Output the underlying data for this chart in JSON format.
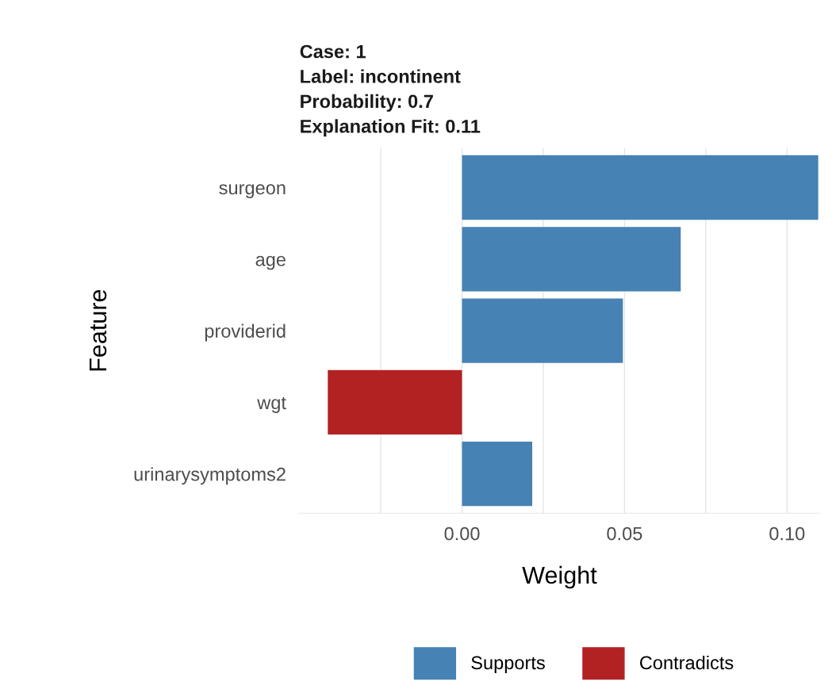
{
  "chart_data": {
    "type": "bar",
    "orientation": "horizontal",
    "title": "Case: 1\nLabel: incontinent\nProbability: 0.7\nExplanation Fit: 0.11",
    "xlabel": "Weight",
    "ylabel": "Feature",
    "categories": [
      "surgeon",
      "age",
      "providerid",
      "wgt",
      "urinarysymptoms2"
    ],
    "series": [
      {
        "name": "Supports",
        "color": "#4682b4",
        "values": [
          0.1096,
          0.0673,
          0.0495,
          null,
          0.0216
        ]
      },
      {
        "name": "Contradicts",
        "color": "#b22222",
        "values": [
          null,
          null,
          null,
          -0.0413,
          null
        ]
      }
    ],
    "xlim": [
      -0.05,
      0.11
    ],
    "xticks": [
      {
        "value": -0.025,
        "label": null
      },
      {
        "value": 0,
        "label": "0.00"
      },
      {
        "value": 0.025,
        "label": null
      },
      {
        "value": 0.05,
        "label": "0.05"
      },
      {
        "value": 0.075,
        "label": null
      },
      {
        "value": 0.1,
        "label": "0.10"
      }
    ],
    "grid": "x",
    "legend": "bottom"
  }
}
